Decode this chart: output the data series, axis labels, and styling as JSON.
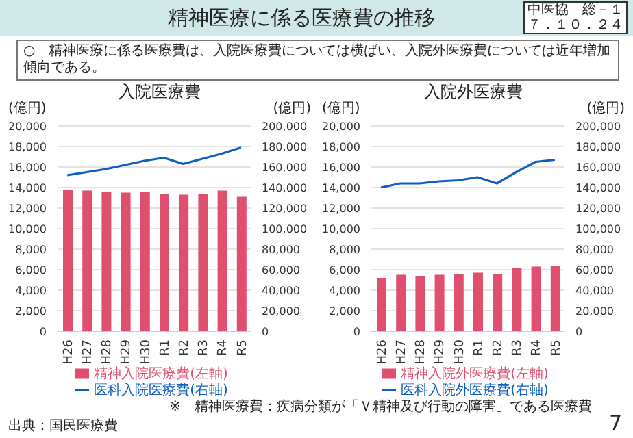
{
  "chart_data": [
    {
      "type": "bar",
      "title": "入院医療費",
      "ylabel": "(億円)",
      "y2label": "(億円)",
      "categories": [
        "H26",
        "H27",
        "H28",
        "H29",
        "H30",
        "R1",
        "R2",
        "R3",
        "R4",
        "R5"
      ],
      "series": [
        {
          "name": "精神入院医療費(左軸)",
          "color": "#e0506e",
          "values": [
            13800,
            13700,
            13600,
            13500,
            13600,
            13400,
            13300,
            13400,
            13700,
            13100
          ]
        },
        {
          "name": "医科入院医療費(右軸)",
          "type": "line",
          "axis": "y2",
          "color": "#0f5fbf",
          "values": [
            152000,
            155000,
            158000,
            162000,
            166000,
            169000,
            163000,
            168000,
            173000,
            179000
          ]
        }
      ],
      "ylim": [
        0,
        20000
      ],
      "yticks": [
        {
          "value": 0,
          "label": "0"
        },
        {
          "value": 2000,
          "label": "2,000"
        },
        {
          "value": 4000,
          "label": "4,000"
        },
        {
          "value": 6000,
          "label": "6,000"
        },
        {
          "value": 8000,
          "label": "8,000"
        },
        {
          "value": 10000,
          "label": "10,000"
        },
        {
          "value": 12000,
          "label": "12,000"
        },
        {
          "value": 14000,
          "label": "14,000"
        },
        {
          "value": 16000,
          "label": "16,000"
        },
        {
          "value": 18000,
          "label": "18,000"
        },
        {
          "value": 20000,
          "label": "20,000"
        }
      ],
      "y2lim": [
        0,
        200000
      ],
      "y2ticks": [
        {
          "value": 0,
          "label": "0"
        },
        {
          "value": 20000,
          "label": "20,000"
        },
        {
          "value": 40000,
          "label": "40,000"
        },
        {
          "value": 60000,
          "label": "60,000"
        },
        {
          "value": 80000,
          "label": "80,000"
        },
        {
          "value": 100000,
          "label": "100,000"
        },
        {
          "value": 120000,
          "label": "120,000"
        },
        {
          "value": 140000,
          "label": "140,000"
        },
        {
          "value": 160000,
          "label": "160,000"
        },
        {
          "value": 180000,
          "label": "180,000"
        },
        {
          "value": 200000,
          "label": "200,000"
        }
      ],
      "grid": "y",
      "legend": "bottom",
      "marker": "none",
      "annotations": [
        "精神医療に係る医療費の推移",
        "中医協　総－１",
        "７．１０．２４",
        "○　精神医療に係る医療費は、入院医療費については横ばい、入院外医療費については近年増加傾向である。",
        "※　精神医療費：疾病分類が「Ｖ精神及び行動の障害」である医療費",
        "出典：国民医療費",
        "7"
      ]
    },
    {
      "type": "bar",
      "title": "入院外医療費",
      "ylabel": "(億円)",
      "y2label": "(億円)",
      "categories": [
        "H26",
        "H27",
        "H28",
        "H29",
        "H30",
        "R1",
        "R2",
        "R3",
        "R4",
        "R5"
      ],
      "series": [
        {
          "name": "精神入院外医療費(左軸)",
          "color": "#e0506e",
          "values": [
            5200,
            5500,
            5400,
            5500,
            5600,
            5700,
            5600,
            6200,
            6300,
            6400
          ]
        },
        {
          "name": "医科入院外医療費(右軸)",
          "type": "line",
          "axis": "y2",
          "color": "#0f5fbf",
          "values": [
            140000,
            144000,
            144000,
            146000,
            147000,
            150000,
            144000,
            155000,
            165000,
            167000
          ]
        }
      ],
      "ylim": [
        0,
        20000
      ],
      "yticks": [
        {
          "value": 0,
          "label": "0"
        },
        {
          "value": 2000,
          "label": "2,000"
        },
        {
          "value": 4000,
          "label": "4,000"
        },
        {
          "value": 6000,
          "label": "6,000"
        },
        {
          "value": 8000,
          "label": "8,000"
        },
        {
          "value": 10000,
          "label": "10,000"
        },
        {
          "value": 12000,
          "label": "12,000"
        },
        {
          "value": 14000,
          "label": "14,000"
        },
        {
          "value": 16000,
          "label": "16,000"
        },
        {
          "value": 18000,
          "label": "18,000"
        },
        {
          "value": 20000,
          "label": "20,000"
        }
      ],
      "y2lim": [
        0,
        200000
      ],
      "y2ticks": [
        {
          "value": 0,
          "label": "0"
        },
        {
          "value": 20000,
          "label": "20,000"
        },
        {
          "value": 40000,
          "label": "40,000"
        },
        {
          "value": 60000,
          "label": "60,000"
        },
        {
          "value": 80000,
          "label": "80,000"
        },
        {
          "value": 100000,
          "label": "100,000"
        },
        {
          "value": 120000,
          "label": "120,000"
        },
        {
          "value": 140000,
          "label": "140,000"
        },
        {
          "value": 160000,
          "label": "160,000"
        },
        {
          "value": 180000,
          "label": "180,000"
        },
        {
          "value": 200000,
          "label": "200,000"
        }
      ],
      "grid": "y",
      "legend": "bottom",
      "marker": "none"
    }
  ]
}
